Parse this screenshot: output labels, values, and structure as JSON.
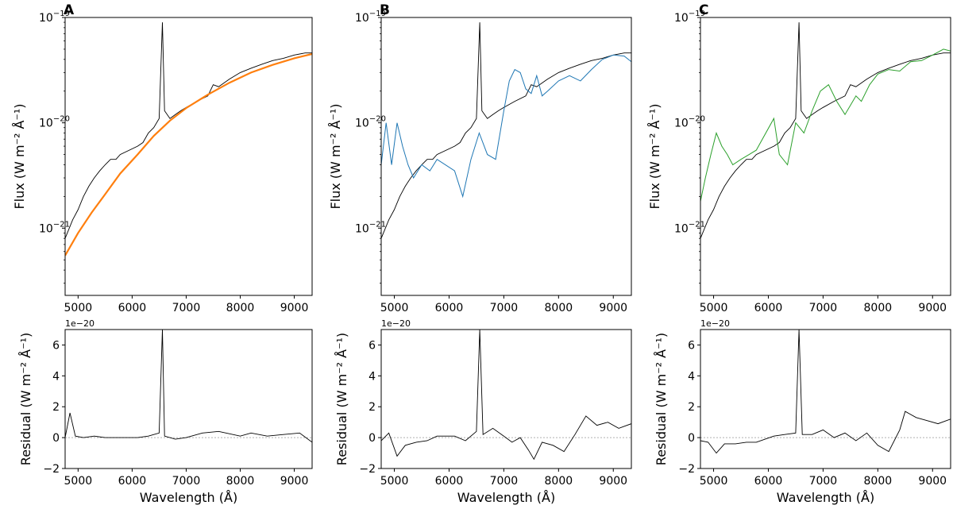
{
  "figure": {
    "panels": [
      "A",
      "B",
      "C"
    ]
  },
  "labels": {
    "flux_ylabel": "Flux (W m⁻² Å⁻¹)",
    "residual_ylabel": "Residual (W m⁻² Å⁻¹)",
    "xlabel": "Wavelength (Å)",
    "offset": "1e−20"
  },
  "colors": {
    "observed": "#000000",
    "model_A": "#ff7f0e",
    "model_B": "#1f77b4",
    "model_C": "#2ca02c",
    "zero_line": "#b0b0b0"
  },
  "chart_data": [
    {
      "type": "line",
      "panel": "A",
      "title": "",
      "xlabel": "Wavelength (Å)",
      "ylabel": "Flux (W m⁻² Å⁻¹)",
      "yscale": "log",
      "xlim": [
        4760,
        9330
      ],
      "ylim": [
        2.3e-22,
        1e-19
      ],
      "x_ticks": [
        5000,
        6000,
        7000,
        8000,
        9000
      ],
      "x_tick_labels": [
        "5000",
        "6000",
        "7000",
        "8000",
        "9000"
      ],
      "y_ticks": [
        1e-21,
        1e-20,
        1e-19
      ],
      "y_tick_labels": [
        "10",
        "10",
        "10"
      ],
      "y_tick_exponents": [
        "−21",
        "−20",
        "−19"
      ],
      "series": [
        {
          "name": "observed",
          "x": [
            4760,
            4900,
            5000,
            5100,
            5200,
            5300,
            5400,
            5500,
            5600,
            5700,
            5780,
            6100,
            6200,
            6300,
            6400,
            6500,
            6560,
            6600,
            6700,
            6800,
            6900,
            7000,
            7200,
            7400,
            7500,
            7600,
            7800,
            8000,
            8200,
            8400,
            8600,
            8800,
            9000,
            9200,
            9330
          ],
          "values": [
            8e-22,
            1.2e-21,
            1.5e-21,
            2e-21,
            2.5e-21,
            3e-21,
            3.5e-21,
            4e-21,
            4.5e-21,
            4.5e-21,
            5e-21,
            6e-21,
            6.5e-21,
            8e-21,
            9e-21,
            1.1e-20,
            9e-20,
            1.3e-20,
            1.1e-20,
            1.2e-20,
            1.3e-20,
            1.4e-20,
            1.6e-20,
            1.8e-20,
            2.3e-20,
            2.2e-20,
            2.6e-20,
            3e-20,
            3.3e-20,
            3.6e-20,
            3.9e-20,
            4.1e-20,
            4.4e-20,
            4.6e-20,
            4.6e-20
          ]
        },
        {
          "name": "model",
          "x": [
            4760,
            5000,
            5250,
            5500,
            5780,
            6100,
            6400,
            6700,
            7000,
            7400,
            7800,
            8200,
            8600,
            9000,
            9330
          ],
          "values": [
            5.5e-22,
            9e-22,
            1.4e-21,
            2.1e-21,
            3.3e-21,
            5e-21,
            7.5e-21,
            1.05e-20,
            1.38e-20,
            1.85e-20,
            2.4e-20,
            3e-20,
            3.55e-20,
            4.1e-20,
            4.5e-20
          ]
        }
      ]
    },
    {
      "type": "line",
      "panel": "A",
      "xlabel": "Wavelength (Å)",
      "ylabel": "Residual (W m⁻² Å⁻¹)",
      "y_offset_label": "1e−20",
      "xlim": [
        4760,
        9330
      ],
      "ylim": [
        -2,
        7
      ],
      "x_ticks": [
        5000,
        6000,
        7000,
        8000,
        9000
      ],
      "x_tick_labels": [
        "5000",
        "6000",
        "7000",
        "8000",
        "9000"
      ],
      "y_ticks": [
        -2,
        0,
        2,
        4,
        6
      ],
      "y_tick_labels": [
        "−2",
        "0",
        "2",
        "4",
        "6"
      ],
      "series": [
        {
          "name": "residual",
          "x": [
            4760,
            4850,
            4950,
            5100,
            5300,
            5500,
            5780,
            6100,
            6300,
            6500,
            6560,
            6600,
            6800,
            7000,
            7300,
            7600,
            8000,
            8200,
            8500,
            8800,
            9100,
            9330
          ],
          "values": [
            0.0,
            1.6,
            0.1,
            0.0,
            0.1,
            0.0,
            0.0,
            0.0,
            0.1,
            0.3,
            7.0,
            0.1,
            -0.1,
            0.0,
            0.3,
            0.4,
            0.1,
            0.3,
            0.1,
            0.2,
            0.3,
            -0.3
          ]
        }
      ]
    },
    {
      "type": "line",
      "panel": "B",
      "xlabel": "Wavelength (Å)",
      "ylabel": "Flux (W m⁻² Å⁻¹)",
      "yscale": "log",
      "xlim": [
        4760,
        9330
      ],
      "ylim": [
        2.3e-22,
        1e-19
      ],
      "x_ticks": [
        5000,
        6000,
        7000,
        8000,
        9000
      ],
      "x_tick_labels": [
        "5000",
        "6000",
        "7000",
        "8000",
        "9000"
      ],
      "y_ticks": [
        1e-21,
        1e-20,
        1e-19
      ],
      "y_tick_labels": [
        "10",
        "10",
        "10"
      ],
      "y_tick_exponents": [
        "−21",
        "−20",
        "−19"
      ],
      "series": [
        {
          "name": "observed",
          "x": [
            4760,
            4900,
            5000,
            5100,
            5200,
            5300,
            5400,
            5500,
            5600,
            5700,
            5780,
            6100,
            6200,
            6300,
            6400,
            6500,
            6560,
            6600,
            6700,
            6800,
            6900,
            7000,
            7200,
            7400,
            7500,
            7600,
            7800,
            8000,
            8200,
            8400,
            8600,
            8800,
            9000,
            9200,
            9330
          ],
          "values": [
            8e-22,
            1.2e-21,
            1.5e-21,
            2e-21,
            2.5e-21,
            3e-21,
            3.5e-21,
            4e-21,
            4.5e-21,
            4.5e-21,
            5e-21,
            6e-21,
            6.5e-21,
            8e-21,
            9e-21,
            1.1e-20,
            9e-20,
            1.3e-20,
            1.1e-20,
            1.2e-20,
            1.3e-20,
            1.4e-20,
            1.6e-20,
            1.8e-20,
            2.3e-20,
            2.2e-20,
            2.6e-20,
            3e-20,
            3.3e-20,
            3.6e-20,
            3.9e-20,
            4.1e-20,
            4.4e-20,
            4.6e-20,
            4.6e-20
          ]
        },
        {
          "name": "model",
          "x": [
            4760,
            4850,
            4950,
            5050,
            5150,
            5250,
            5350,
            5500,
            5650,
            5780,
            6100,
            6250,
            6400,
            6550,
            6700,
            6850,
            7000,
            7100,
            7200,
            7300,
            7400,
            7500,
            7600,
            7700,
            7800,
            8000,
            8200,
            8400,
            8600,
            8800,
            9000,
            9200,
            9330
          ],
          "values": [
            4e-21,
            1e-20,
            4e-21,
            1e-20,
            6e-21,
            4e-21,
            3e-21,
            4e-21,
            3.5e-21,
            4.5e-21,
            3.5e-21,
            2e-21,
            4.5e-21,
            8e-21,
            5e-21,
            4.5e-21,
            1.3e-20,
            2.5e-20,
            3.2e-20,
            3e-20,
            2.1e-20,
            1.9e-20,
            2.8e-20,
            1.8e-20,
            2e-20,
            2.5e-20,
            2.8e-20,
            2.5e-20,
            3.2e-20,
            4e-20,
            4.4e-20,
            4.3e-20,
            3.8e-20
          ]
        }
      ]
    },
    {
      "type": "line",
      "panel": "B",
      "xlabel": "Wavelength (Å)",
      "ylabel": "Residual (W m⁻² Å⁻¹)",
      "y_offset_label": "1e−20",
      "xlim": [
        4760,
        9330
      ],
      "ylim": [
        -2,
        7
      ],
      "x_ticks": [
        5000,
        6000,
        7000,
        8000,
        9000
      ],
      "x_tick_labels": [
        "5000",
        "6000",
        "7000",
        "8000",
        "9000"
      ],
      "y_ticks": [
        -2,
        0,
        2,
        4,
        6
      ],
      "y_tick_labels": [
        "−2",
        "0",
        "2",
        "4",
        "6"
      ],
      "series": [
        {
          "name": "residual",
          "x": [
            4760,
            4900,
            5050,
            5200,
            5400,
            5600,
            5780,
            6100,
            6300,
            6500,
            6560,
            6620,
            6800,
            7000,
            7150,
            7300,
            7450,
            7550,
            7700,
            7900,
            8100,
            8300,
            8500,
            8700,
            8900,
            9100,
            9330
          ],
          "values": [
            -0.2,
            0.3,
            -1.2,
            -0.5,
            -0.3,
            -0.2,
            0.1,
            0.1,
            -0.2,
            0.4,
            7.0,
            0.2,
            0.6,
            0.1,
            -0.3,
            0.0,
            -0.8,
            -1.4,
            -0.3,
            -0.5,
            -0.9,
            0.2,
            1.4,
            0.8,
            1.0,
            0.6,
            0.9
          ]
        }
      ]
    },
    {
      "type": "line",
      "panel": "C",
      "xlabel": "Wavelength (Å)",
      "ylabel": "Flux (W m⁻² Å⁻¹)",
      "yscale": "log",
      "xlim": [
        4760,
        9330
      ],
      "ylim": [
        2.3e-22,
        1e-19
      ],
      "x_ticks": [
        5000,
        6000,
        7000,
        8000,
        9000
      ],
      "x_tick_labels": [
        "5000",
        "6000",
        "7000",
        "8000",
        "9000"
      ],
      "y_ticks": [
        1e-21,
        1e-20,
        1e-19
      ],
      "y_tick_labels": [
        "10",
        "10",
        "10"
      ],
      "y_tick_exponents": [
        "−21",
        "−20",
        "−19"
      ],
      "series": [
        {
          "name": "observed",
          "x": [
            4760,
            4900,
            5000,
            5100,
            5200,
            5300,
            5400,
            5500,
            5600,
            5700,
            5780,
            6100,
            6200,
            6300,
            6400,
            6500,
            6560,
            6600,
            6700,
            6800,
            6900,
            7000,
            7200,
            7400,
            7500,
            7600,
            7800,
            8000,
            8200,
            8400,
            8600,
            8800,
            9000,
            9200,
            9330
          ],
          "values": [
            8e-22,
            1.2e-21,
            1.5e-21,
            2e-21,
            2.5e-21,
            3e-21,
            3.5e-21,
            4e-21,
            4.5e-21,
            4.5e-21,
            5e-21,
            6e-21,
            6.5e-21,
            8e-21,
            9e-21,
            1.1e-20,
            9e-20,
            1.3e-20,
            1.1e-20,
            1.2e-20,
            1.3e-20,
            1.4e-20,
            1.6e-20,
            1.8e-20,
            2.3e-20,
            2.2e-20,
            2.6e-20,
            3e-20,
            3.3e-20,
            3.6e-20,
            3.9e-20,
            4.1e-20,
            4.4e-20,
            4.6e-20,
            4.6e-20
          ]
        },
        {
          "name": "model",
          "x": [
            4760,
            4850,
            4950,
            5050,
            5150,
            5250,
            5350,
            5500,
            5650,
            5780,
            6100,
            6200,
            6350,
            6500,
            6650,
            6800,
            6950,
            7100,
            7250,
            7400,
            7600,
            7700,
            7850,
            8000,
            8200,
            8400,
            8600,
            8800,
            9000,
            9200,
            9330
          ],
          "values": [
            1.8e-21,
            3e-21,
            5e-21,
            8e-21,
            6e-21,
            5e-21,
            4e-21,
            4.5e-21,
            5e-21,
            5.5e-21,
            1.1e-20,
            5e-21,
            4e-21,
            1e-20,
            8e-21,
            1.3e-20,
            2e-20,
            2.3e-20,
            1.6e-20,
            1.2e-20,
            1.8e-20,
            1.6e-20,
            2.3e-20,
            2.9e-20,
            3.2e-20,
            3.1e-20,
            3.8e-20,
            3.9e-20,
            4.4e-20,
            5e-20,
            4.8e-20
          ]
        }
      ]
    },
    {
      "type": "line",
      "panel": "C",
      "xlabel": "Wavelength (Å)",
      "ylabel": "Residual (W m⁻² Å⁻¹)",
      "y_offset_label": "1e−20",
      "xlim": [
        4760,
        9330
      ],
      "ylim": [
        -2,
        7
      ],
      "x_ticks": [
        5000,
        6000,
        7000,
        8000,
        9000
      ],
      "x_tick_labels": [
        "5000",
        "6000",
        "7000",
        "8000",
        "9000"
      ],
      "y_ticks": [
        -2,
        0,
        2,
        4,
        6
      ],
      "y_tick_labels": [
        "−2",
        "0",
        "2",
        "4",
        "6"
      ],
      "series": [
        {
          "name": "residual",
          "x": [
            4760,
            4900,
            5050,
            5200,
            5400,
            5600,
            5780,
            6100,
            6300,
            6500,
            6560,
            6620,
            6800,
            7000,
            7200,
            7400,
            7600,
            7800,
            8000,
            8200,
            8400,
            8500,
            8700,
            8900,
            9100,
            9330
          ],
          "values": [
            -0.2,
            -0.3,
            -1.0,
            -0.4,
            -0.4,
            -0.3,
            -0.3,
            0.1,
            0.2,
            0.3,
            7.0,
            0.2,
            0.2,
            0.5,
            0.0,
            0.3,
            -0.2,
            0.3,
            -0.5,
            -0.9,
            0.5,
            1.7,
            1.3,
            1.1,
            0.9,
            1.2
          ]
        }
      ]
    }
  ]
}
